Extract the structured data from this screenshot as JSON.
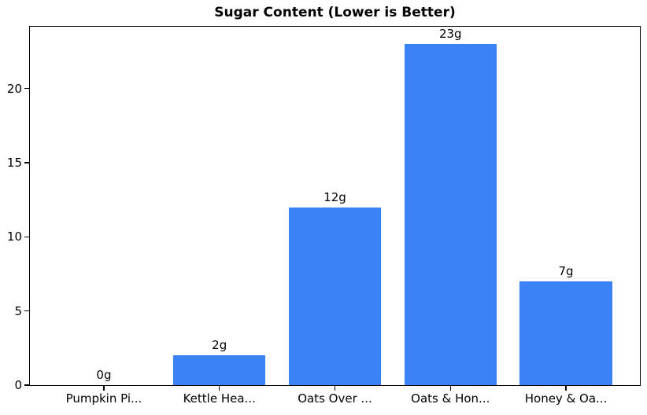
{
  "chart_data": {
    "type": "bar",
    "title": "Sugar Content (Lower is Better)",
    "categories": [
      "Pumpkin Pi...",
      "Kettle Hea...",
      "Oats Over ...",
      "Oats & Hon...",
      "Honey & Oa..."
    ],
    "values": [
      0,
      2,
      12,
      23,
      7
    ],
    "bar_labels": [
      "0g",
      "2g",
      "12g",
      "23g",
      "7g"
    ],
    "xlabel": "",
    "ylabel": "",
    "yticks": [
      0,
      5,
      10,
      15,
      20
    ],
    "ylim": [
      0,
      24.17
    ],
    "xlim": [
      -0.64,
      4.64
    ],
    "bar_width": 0.8,
    "bar_color": "#3b82f6",
    "spine_color": "#000000",
    "text_color": "#000000",
    "grid": false,
    "legend": false
  }
}
